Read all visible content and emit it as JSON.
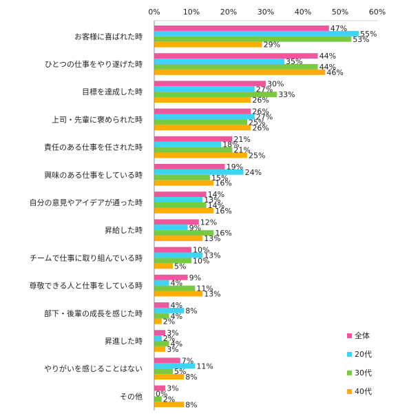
{
  "chart_data": {
    "type": "bar",
    "orientation": "horizontal",
    "categories": [
      "お客様に喜ばれた時",
      "ひとつの仕事をやり遂げた時",
      "目標を達成した時",
      "上司・先輩に褒められた時",
      "責任のある仕事を任された時",
      "興味のある仕事をしている時",
      "自分の意見やアイデアが通った時",
      "昇給した時",
      "チームで仕事に取り組んでいる時",
      "尊敬できる人と仕事をしている時",
      "部下・後輩の成長を感じた時",
      "昇進した時",
      "やりがいを感じることはない",
      "その他"
    ],
    "series": [
      {
        "name": "全体",
        "color": "#f0569b",
        "values": [
          47,
          44,
          30,
          26,
          21,
          19,
          14,
          12,
          10,
          9,
          4,
          3,
          7,
          3
        ]
      },
      {
        "name": "20代",
        "color": "#3fd3f5",
        "values": [
          55,
          35,
          27,
          27,
          18,
          24,
          13,
          9,
          13,
          4,
          8,
          2,
          11,
          0
        ]
      },
      {
        "name": "30代",
        "color": "#7ac943",
        "values": [
          53,
          44,
          33,
          25,
          21,
          15,
          14,
          16,
          10,
          11,
          4,
          4,
          5,
          2
        ]
      },
      {
        "name": "40代",
        "color": "#ffad00",
        "values": [
          29,
          46,
          26,
          26,
          25,
          16,
          16,
          13,
          5,
          13,
          2,
          3,
          8,
          8
        ]
      }
    ],
    "value_suffix": "%",
    "xlim": [
      0,
      60
    ],
    "x_ticks": [
      "0%",
      "10%",
      "20%",
      "30%",
      "40%",
      "50%",
      "60%"
    ],
    "legend_position": "bottom-right",
    "grid": false
  }
}
